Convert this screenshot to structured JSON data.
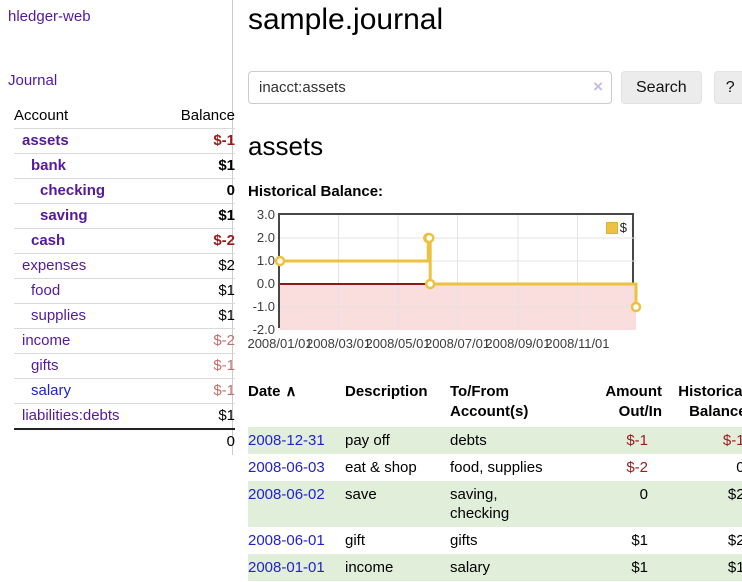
{
  "app": {
    "title": "hledger-web",
    "nav_journal": "Journal"
  },
  "sidebar": {
    "headers": {
      "account": "Account",
      "balance": "Balance"
    },
    "accounts": [
      {
        "name": "assets",
        "balance": "$-1"
      },
      {
        "name": "bank",
        "balance": "$1"
      },
      {
        "name": "checking",
        "balance": "0"
      },
      {
        "name": "saving",
        "balance": "$1"
      },
      {
        "name": "cash",
        "balance": "$-2"
      },
      {
        "name": "expenses",
        "balance": "$2"
      },
      {
        "name": "food",
        "balance": "$1"
      },
      {
        "name": "supplies",
        "balance": "$1"
      },
      {
        "name": "income",
        "balance": "$-2"
      },
      {
        "name": "gifts",
        "balance": "$-1"
      },
      {
        "name": "salary",
        "balance": "$-1"
      },
      {
        "name": "liabilities:debts",
        "balance": "$1"
      }
    ],
    "total": "0"
  },
  "main": {
    "title": "sample.journal",
    "search": {
      "value": "inacct:assets",
      "clear_icon": "×",
      "search_label": "Search",
      "help_label": "?"
    },
    "account_heading": "assets",
    "chart_label": "Historical Balance:"
  },
  "register": {
    "headers": {
      "date": "Date",
      "sort_icon": "∧",
      "description": "Description",
      "tofrom": "To/From\nAccount(s)",
      "amount": "Amount\nOut/In",
      "balance": "Historical\nBalance"
    },
    "rows": [
      {
        "date": "2008-12-31",
        "description": "pay off",
        "tofrom": "debts",
        "amount": "$-1",
        "balance": "$-1"
      },
      {
        "date": "2008-06-03",
        "description": "eat & shop",
        "tofrom": "food, supplies",
        "amount": "$-2",
        "balance": "0"
      },
      {
        "date": "2008-06-02",
        "description": "save",
        "tofrom": "saving,\nchecking",
        "amount": "0",
        "balance": "$2"
      },
      {
        "date": "2008-06-01",
        "description": "gift",
        "tofrom": "gifts",
        "amount": "$1",
        "balance": "$2"
      },
      {
        "date": "2008-01-01",
        "description": "income",
        "tofrom": "salary",
        "amount": "$1",
        "balance": "$1"
      }
    ]
  },
  "chart_data": {
    "type": "line",
    "step": true,
    "title": "Historical Balance",
    "series": [
      {
        "name": "$",
        "color": "#edc240",
        "points": [
          [
            "2008-01-01",
            1
          ],
          [
            "2008-06-01",
            2
          ],
          [
            "2008-06-02",
            2
          ],
          [
            "2008-06-03",
            0
          ],
          [
            "2008-12-31",
            -1
          ]
        ]
      }
    ],
    "x_range": [
      "2008-01-01",
      "2008-12-31"
    ],
    "ylim": [
      -2,
      3
    ],
    "y_ticks": [
      "3.0",
      "2.0",
      "1.0",
      "0.0",
      "-1.0",
      "-2.0"
    ],
    "x_ticks": [
      "2008/01/01",
      "2008/03/01",
      "2008/05/01",
      "2008/07/01",
      "2008/09/01",
      "2008/11/01"
    ],
    "legend": {
      "label": "$",
      "position": "top-right"
    },
    "grid": true,
    "negative_region_color": "#fadddd",
    "zero_line_color": "#8b1919"
  },
  "colors": {
    "link_purple": "#551a9b",
    "link_blue": "#2222cc",
    "negative_strong": "#9a1b1b",
    "negative_soft": "#c0706c",
    "row_green": "#e0eeda",
    "series_yellow": "#edc240",
    "chart_negative_bg": "#fadddd",
    "chart_zero_line": "#8b1919",
    "chart_border": "#474747"
  }
}
